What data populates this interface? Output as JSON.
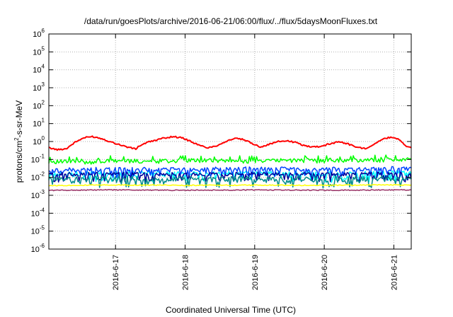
{
  "chart_data": {
    "type": "line",
    "title": "/data/run/goesPlots/archive/2016-06-21/06:00/flux/../flux/5daysMoonFluxes.txt",
    "xlabel": "Coordinated Universal Time (UTC)",
    "ylabel": {
      "base": "protons/cm",
      "sup": "2",
      "rest": "-s-sr-MeV"
    },
    "xlim": [
      "2016-06-16T01:00",
      "2016-06-21T06:00"
    ],
    "yscale": "log",
    "ylim": [
      1e-06,
      1000000.0
    ],
    "grid": true,
    "x_ticks": [
      {
        "x": "2016-06-17T00:00",
        "label": "2016-6-17"
      },
      {
        "x": "2016-06-18T00:00",
        "label": "2016-6-18"
      },
      {
        "x": "2016-06-19T00:00",
        "label": "2016-6-19"
      },
      {
        "x": "2016-06-20T00:00",
        "label": "2016-6-20"
      },
      {
        "x": "2016-06-21T00:00",
        "label": "2016-6-21"
      }
    ],
    "y_ticks": [
      {
        "value": 1e-06,
        "exp": "-6"
      },
      {
        "value": 1e-05,
        "exp": "-5"
      },
      {
        "value": 0.0001,
        "exp": "-4"
      },
      {
        "value": 0.001,
        "exp": "-3"
      },
      {
        "value": 0.01,
        "exp": "-2"
      },
      {
        "value": 0.1,
        "exp": "-1"
      },
      {
        "value": 1,
        "exp": "0"
      },
      {
        "value": 10,
        "exp": "1"
      },
      {
        "value": 100,
        "exp": "2"
      },
      {
        "value": 1000,
        "exp": "3"
      },
      {
        "value": 10000,
        "exp": "4"
      },
      {
        "value": 100000,
        "exp": "5"
      },
      {
        "value": 1000000,
        "exp": "6"
      }
    ],
    "y_tick_base": "10",
    "series": [
      {
        "color": "#ff0000",
        "points": [
          [
            "2016-06-16T01:00",
            0.45
          ],
          [
            "2016-06-16T04:00",
            0.35
          ],
          [
            "2016-06-16T07:00",
            0.4
          ],
          [
            "2016-06-16T10:00",
            0.9
          ],
          [
            "2016-06-16T13:00",
            1.6
          ],
          [
            "2016-06-16T16:00",
            1.9
          ],
          [
            "2016-06-16T19:00",
            1.5
          ],
          [
            "2016-06-16T22:00",
            1.0
          ],
          [
            "2016-06-17T01:00",
            0.7
          ],
          [
            "2016-06-17T04:00",
            0.5
          ],
          [
            "2016-06-17T07:00",
            0.38
          ],
          [
            "2016-06-17T08:00",
            0.55
          ],
          [
            "2016-06-17T11:00",
            0.9
          ],
          [
            "2016-06-17T14:00",
            1.2
          ],
          [
            "2016-06-17T17:00",
            1.6
          ],
          [
            "2016-06-17T20:00",
            1.9
          ],
          [
            "2016-06-17T23:00",
            1.6
          ],
          [
            "2016-06-18T02:00",
            1.0
          ],
          [
            "2016-06-18T05:00",
            0.6
          ],
          [
            "2016-06-18T08:00",
            0.45
          ],
          [
            "2016-06-18T11:00",
            0.6
          ],
          [
            "2016-06-18T14:00",
            1.0
          ],
          [
            "2016-06-18T17:00",
            1.5
          ],
          [
            "2016-06-18T20:00",
            1.3
          ],
          [
            "2016-06-18T23:00",
            0.8
          ],
          [
            "2016-06-19T02:00",
            0.5
          ],
          [
            "2016-06-19T05:00",
            0.7
          ],
          [
            "2016-06-19T08:00",
            1.0
          ],
          [
            "2016-06-19T11:00",
            1.1
          ],
          [
            "2016-06-19T14:00",
            0.9
          ],
          [
            "2016-06-19T17:00",
            0.6
          ],
          [
            "2016-06-19T20:00",
            0.5
          ],
          [
            "2016-06-19T23:00",
            0.55
          ],
          [
            "2016-06-20T02:00",
            0.75
          ],
          [
            "2016-06-20T05:00",
            1.0
          ],
          [
            "2016-06-20T08:00",
            0.75
          ],
          [
            "2016-06-20T11:00",
            0.5
          ],
          [
            "2016-06-20T14:00",
            0.4
          ],
          [
            "2016-06-20T17:00",
            0.7
          ],
          [
            "2016-06-20T20:00",
            1.3
          ],
          [
            "2016-06-20T23:00",
            1.8
          ],
          [
            "2016-06-21T02:00",
            1.3
          ],
          [
            "2016-06-21T04:00",
            0.6
          ],
          [
            "2016-06-21T06:00",
            0.45
          ]
        ]
      },
      {
        "color": "#00ff00",
        "points": [
          [
            "2016-06-16T01:00",
            0.08
          ],
          [
            "2016-06-16T12:00",
            0.07
          ],
          [
            "2016-06-17T00:00",
            0.085
          ],
          [
            "2016-06-17T12:00",
            0.08
          ],
          [
            "2016-06-18T00:00",
            0.09
          ],
          [
            "2016-06-18T12:00",
            0.085
          ],
          [
            "2016-06-19T00:00",
            0.08
          ],
          [
            "2016-06-19T12:00",
            0.09
          ],
          [
            "2016-06-20T00:00",
            0.085
          ],
          [
            "2016-06-20T12:00",
            0.09
          ],
          [
            "2016-06-21T00:00",
            0.1
          ],
          [
            "2016-06-21T06:00",
            0.09
          ]
        ]
      },
      {
        "color": "#00ffff",
        "points": [
          [
            "2016-06-16T01:00",
            0.015
          ],
          [
            "2016-06-17T00:00",
            0.017
          ],
          [
            "2016-06-18T00:00",
            0.016
          ],
          [
            "2016-06-19T00:00",
            0.017
          ],
          [
            "2016-06-20T00:00",
            0.016
          ],
          [
            "2016-06-21T00:00",
            0.018
          ],
          [
            "2016-06-21T06:00",
            0.017
          ]
        ]
      },
      {
        "color": "#0044ff",
        "points": [
          [
            "2016-06-16T01:00",
            0.025
          ],
          [
            "2016-06-17T00:00",
            0.03
          ],
          [
            "2016-06-18T00:00",
            0.028
          ],
          [
            "2016-06-19T00:00",
            0.03
          ],
          [
            "2016-06-20T00:00",
            0.028
          ],
          [
            "2016-06-21T00:00",
            0.032
          ],
          [
            "2016-06-21T06:00",
            0.03
          ]
        ]
      },
      {
        "color": "#000099",
        "points": [
          [
            "2016-06-16T01:00",
            0.015
          ],
          [
            "2016-06-17T00:00",
            0.016
          ],
          [
            "2016-06-18T00:00",
            0.015
          ],
          [
            "2016-06-19T00:00",
            0.016
          ],
          [
            "2016-06-20T00:00",
            0.015
          ],
          [
            "2016-06-21T00:00",
            0.016
          ],
          [
            "2016-06-21T06:00",
            0.016
          ]
        ]
      },
      {
        "color": "#008b8b",
        "points": [
          [
            "2016-06-16T01:00",
            0.008
          ],
          [
            "2016-06-17T00:00",
            0.009
          ],
          [
            "2016-06-18T00:00",
            0.008
          ],
          [
            "2016-06-19T00:00",
            0.009
          ],
          [
            "2016-06-20T00:00",
            0.008
          ],
          [
            "2016-06-21T00:00",
            0.009
          ],
          [
            "2016-06-21T06:00",
            0.009
          ]
        ]
      },
      {
        "color": "#ffff00",
        "points": [
          [
            "2016-06-16T01:00",
            0.0035
          ],
          [
            "2016-06-17T00:00",
            0.0038
          ],
          [
            "2016-06-18T00:00",
            0.0036
          ],
          [
            "2016-06-19T00:00",
            0.0037
          ],
          [
            "2016-06-20T00:00",
            0.0036
          ],
          [
            "2016-06-21T00:00",
            0.0038
          ],
          [
            "2016-06-21T06:00",
            0.0037
          ]
        ]
      },
      {
        "color": "#993366",
        "points": [
          [
            "2016-06-16T01:00",
            0.0019
          ],
          [
            "2016-06-17T00:00",
            0.002
          ],
          [
            "2016-06-18T00:00",
            0.0019
          ],
          [
            "2016-06-19T00:00",
            0.002
          ],
          [
            "2016-06-20T00:00",
            0.0019
          ],
          [
            "2016-06-21T00:00",
            0.002
          ],
          [
            "2016-06-21T06:00",
            0.002
          ]
        ]
      }
    ]
  }
}
